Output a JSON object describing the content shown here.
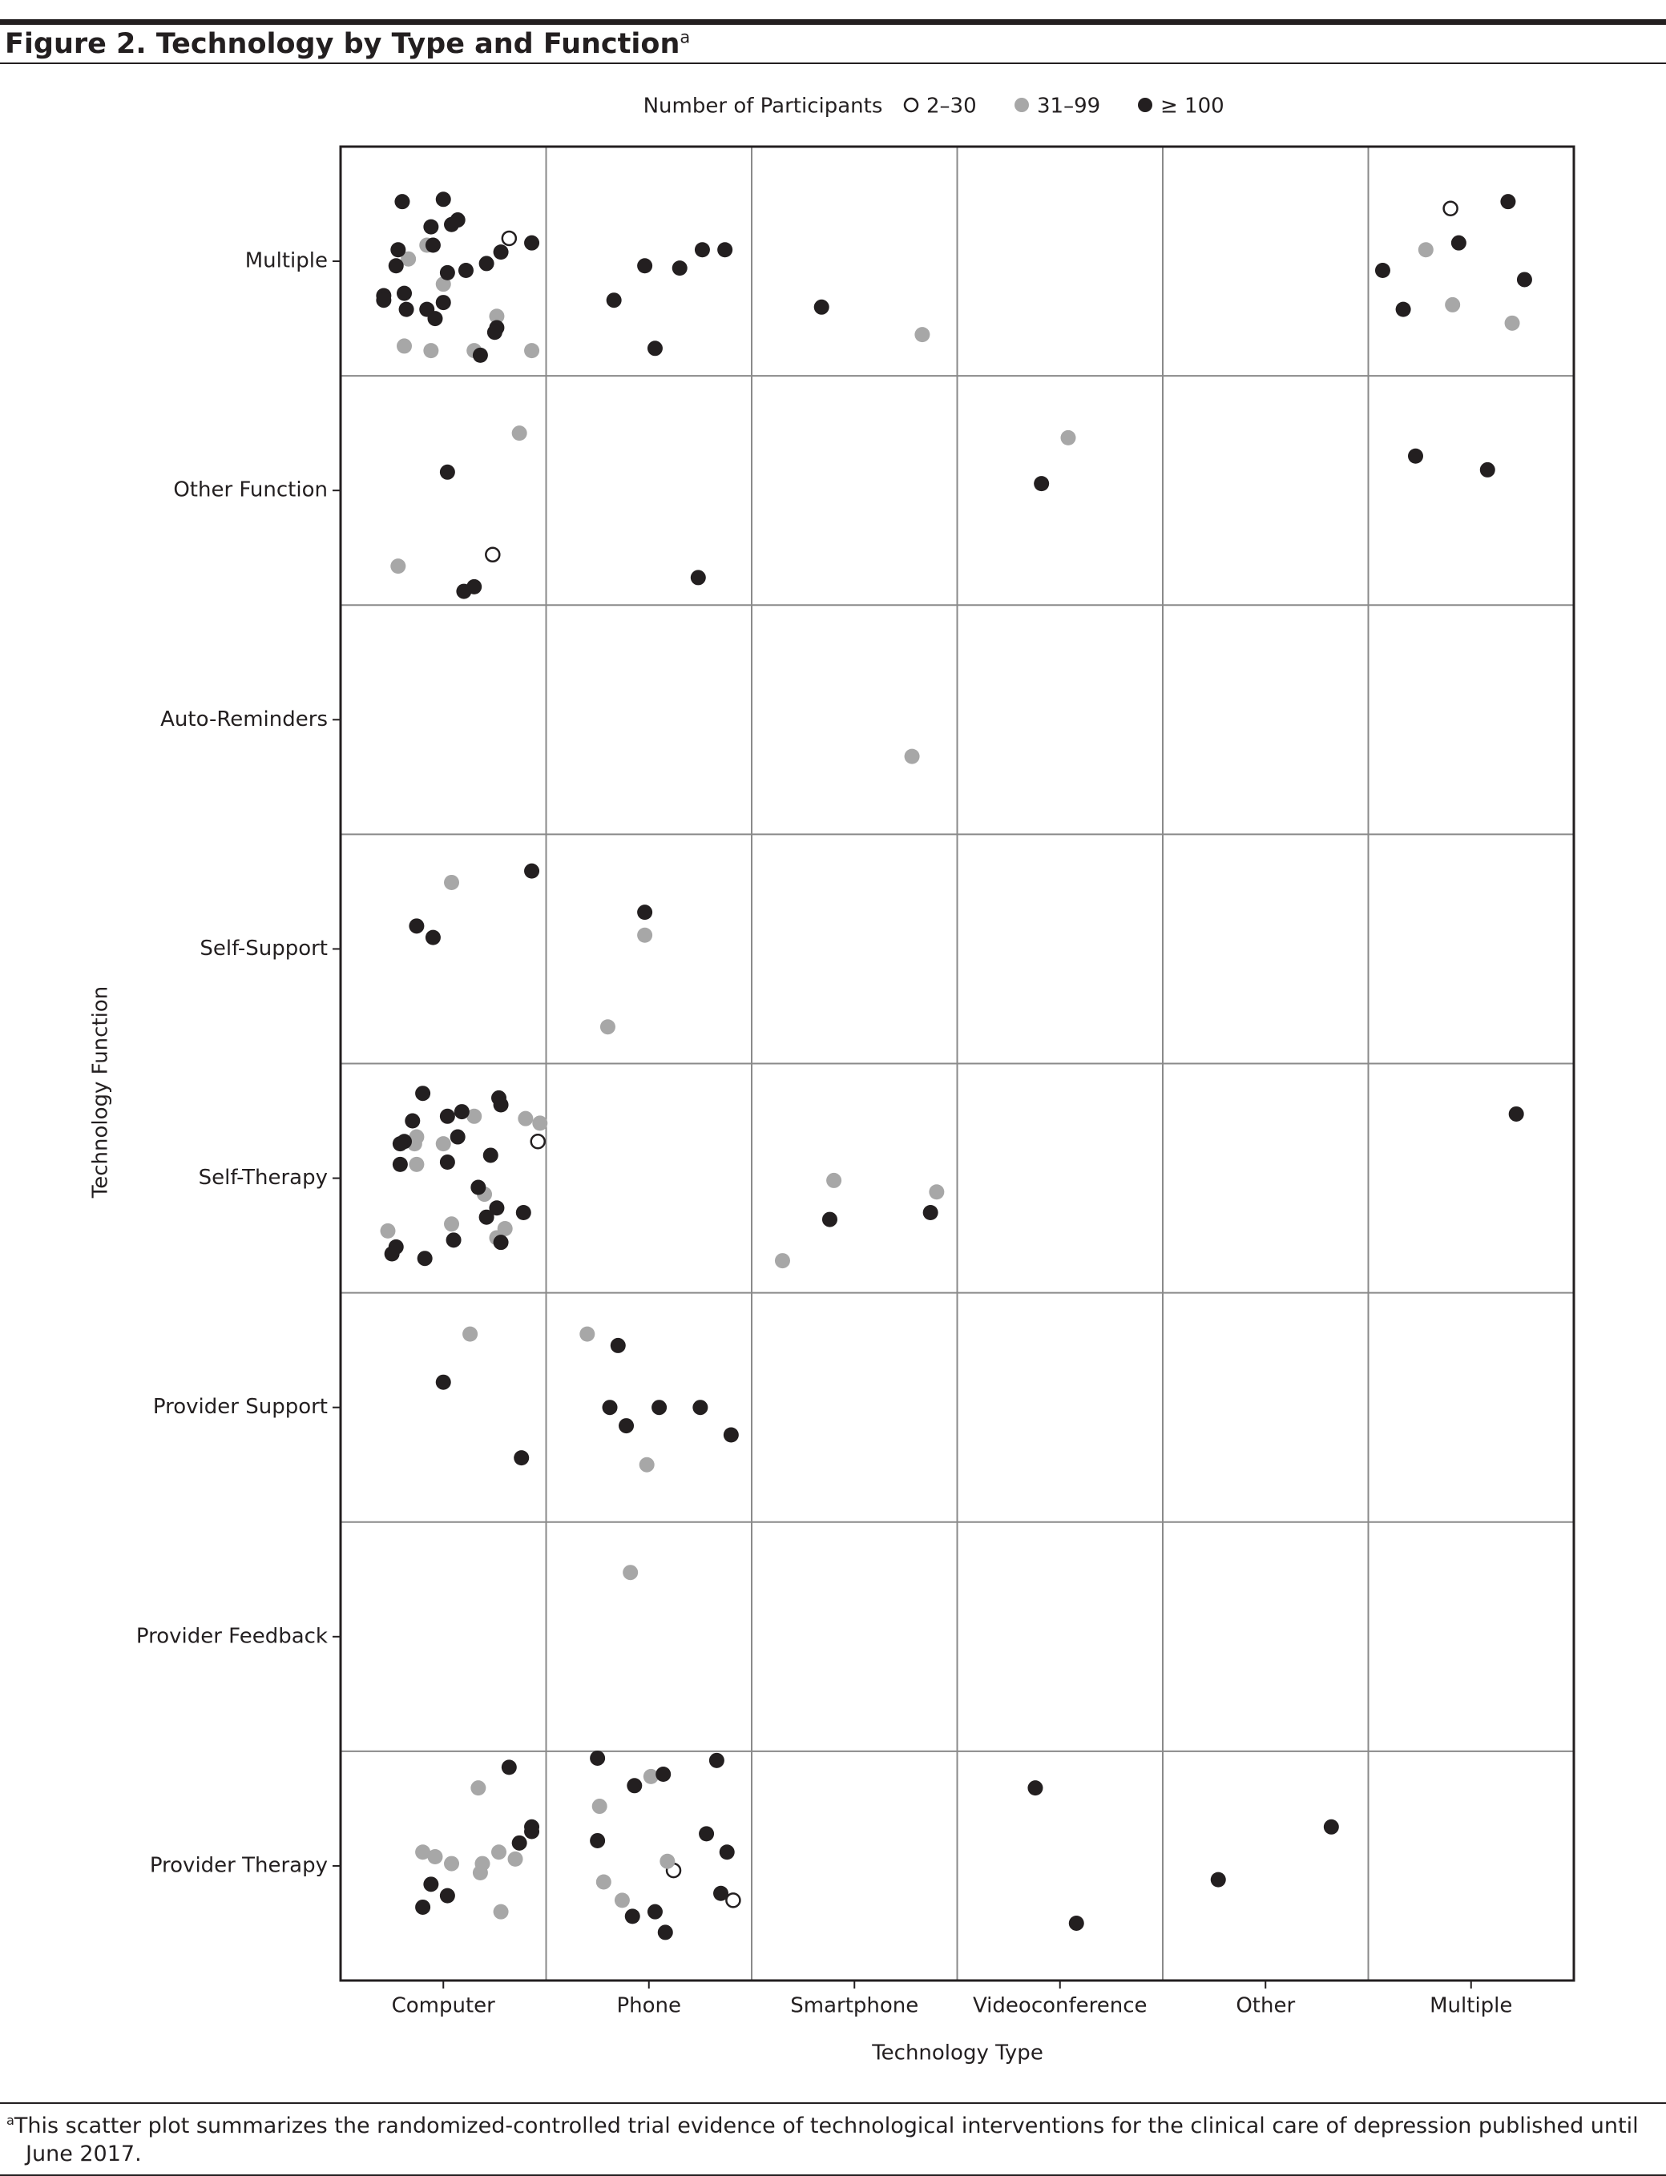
{
  "chart_data": {
    "type": "scatter",
    "title": "Figure 2. Technology by Type and Function",
    "title_note": "a",
    "footnote": "This scatter plot summarizes the randomized-controlled trial evidence of technological interventions for the clinical care of depression published until June 2017.",
    "legend_title": "Number of Participants",
    "x_label": "Technology Type",
    "y_label": "Technology Function",
    "x_categories": [
      "Computer",
      "Phone",
      "Smartphone",
      "Videoconference",
      "Other",
      "Multiple"
    ],
    "y_categories": [
      "Provider Therapy",
      "Provider Feedback",
      "Provider Support",
      "Self-Therapy",
      "Self-Support",
      "Auto-Reminders",
      "Other Function",
      "Multiple"
    ],
    "xlim": [
      0.5,
      6.5
    ],
    "ylim": [
      0.5,
      8.5
    ],
    "series": [
      {
        "name": "2–30",
        "color": "#231f20",
        "marker": "open",
        "x": [
          1.32,
          5.9,
          1.24,
          1.46,
          2.12,
          2.41
        ],
        "y": [
          8.1,
          8.23,
          6.72,
          4.16,
          0.98,
          0.85
        ]
      },
      {
        "name": "31–99",
        "color": "#a7a7a7",
        "marker": "filled",
        "x": [
          0.83,
          0.92,
          1.0,
          1.26,
          0.81,
          0.94,
          1.15,
          1.43,
          3.33,
          5.78,
          5.91,
          6.2,
          1.37,
          0.78,
          4.04,
          3.28,
          1.04,
          1.98,
          1.8,
          1.15,
          1.4,
          1.47,
          0.87,
          0.86,
          1.0,
          0.87,
          1.2,
          0.73,
          1.04,
          1.3,
          1.26,
          2.9,
          3.4,
          2.65,
          1.13,
          1.7,
          1.99,
          1.91,
          1.17,
          0.9,
          0.96,
          1.04,
          1.19,
          1.27,
          1.35,
          1.18,
          1.28,
          2.01,
          1.76,
          2.09,
          1.78,
          1.87
        ],
        "y": [
          8.01,
          8.07,
          7.9,
          7.76,
          7.63,
          7.61,
          7.61,
          7.61,
          7.68,
          8.05,
          7.81,
          7.73,
          7.25,
          6.67,
          7.23,
          5.84,
          5.29,
          5.06,
          4.66,
          4.27,
          4.26,
          4.24,
          4.18,
          4.15,
          4.15,
          4.06,
          3.93,
          3.77,
          3.8,
          3.78,
          3.74,
          3.99,
          3.94,
          3.64,
          3.32,
          3.32,
          2.75,
          2.28,
          1.34,
          1.06,
          1.04,
          1.01,
          1.01,
          1.06,
          1.03,
          0.97,
          0.8,
          1.39,
          1.26,
          1.02,
          0.93,
          0.85
        ]
      },
      {
        "name": "≥ 100",
        "color": "#231f20",
        "marker": "filled",
        "x": [
          0.8,
          1.0,
          0.94,
          1.04,
          1.07,
          0.78,
          0.77,
          0.95,
          0.71,
          0.71,
          0.81,
          1.02,
          1.11,
          1.21,
          1.28,
          1.43,
          0.92,
          1.0,
          0.82,
          0.96,
          1.26,
          1.25,
          1.18,
          1.98,
          2.15,
          2.26,
          2.37,
          1.83,
          2.03,
          2.84,
          6.18,
          5.94,
          5.57,
          6.26,
          5.67,
          1.02,
          1.15,
          1.1,
          2.24,
          3.91,
          5.73,
          6.08,
          1.43,
          0.87,
          0.95,
          1.98,
          0.9,
          1.27,
          0.85,
          1.02,
          1.09,
          1.28,
          0.81,
          0.79,
          1.07,
          0.79,
          1.02,
          1.23,
          1.17,
          1.26,
          1.21,
          1.39,
          1.05,
          1.28,
          0.77,
          0.75,
          0.91,
          2.88,
          3.37,
          6.22,
          1.0,
          1.38,
          1.85,
          1.81,
          2.05,
          2.25,
          1.89,
          2.4,
          1.32,
          1.43,
          1.43,
          1.37,
          0.94,
          1.02,
          0.9,
          1.75,
          2.33,
          2.07,
          1.93,
          2.28,
          1.75,
          2.38,
          2.35,
          1.92,
          2.03,
          2.08,
          3.88,
          4.08,
          4.77,
          5.32
        ],
        "y": [
          8.26,
          8.27,
          8.15,
          8.16,
          8.18,
          8.05,
          7.98,
          8.07,
          7.85,
          7.83,
          7.86,
          7.95,
          7.96,
          7.99,
          8.04,
          8.08,
          7.79,
          7.82,
          7.79,
          7.75,
          7.71,
          7.69,
          7.59,
          7.98,
          7.97,
          8.05,
          8.05,
          7.83,
          7.62,
          7.8,
          8.26,
          8.08,
          7.96,
          7.92,
          7.79,
          7.08,
          6.58,
          6.56,
          6.62,
          7.03,
          7.15,
          7.09,
          5.34,
          5.1,
          5.05,
          5.16,
          4.37,
          4.35,
          4.25,
          4.27,
          4.29,
          4.32,
          4.16,
          4.15,
          4.18,
          4.06,
          4.07,
          4.1,
          3.96,
          3.87,
          3.83,
          3.85,
          3.73,
          3.72,
          3.7,
          3.67,
          3.65,
          3.82,
          3.85,
          4.28,
          3.11,
          2.78,
          3.27,
          3.0,
          3.0,
          3.0,
          2.92,
          2.88,
          1.43,
          1.17,
          1.15,
          1.1,
          0.92,
          0.87,
          0.82,
          1.47,
          1.46,
          1.4,
          1.35,
          1.14,
          1.11,
          1.06,
          0.88,
          0.78,
          0.8,
          0.71,
          1.34,
          0.75,
          0.94,
          1.17
        ]
      }
    ]
  }
}
